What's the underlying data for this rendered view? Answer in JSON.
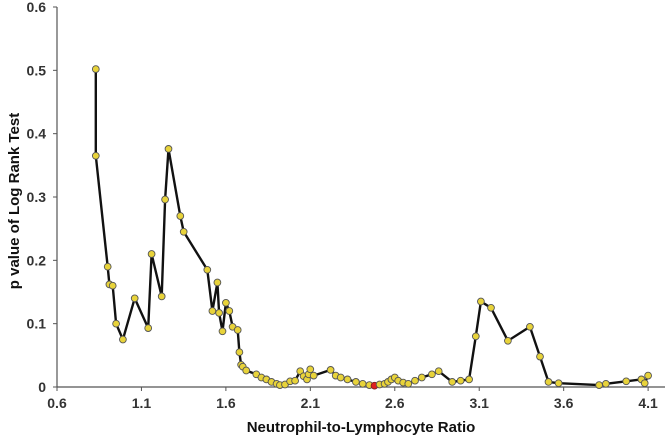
{
  "chart_data": {
    "type": "line",
    "title": "",
    "xlabel": "Neutrophil-to-Lymphocyte Ratio",
    "ylabel": "p value of Log Rank Test",
    "xlim": [
      0.6,
      4.2
    ],
    "ylim": [
      0,
      0.6
    ],
    "x_ticks": [
      0.6,
      1.1,
      1.6,
      2.1,
      2.6,
      3.1,
      3.6,
      4.1
    ],
    "x_tick_labels": [
      "0.6",
      "1.1",
      "1.6",
      "2.1",
      "2.6",
      "3.1",
      "3.6",
      "4.1"
    ],
    "y_ticks": [
      0,
      0.1,
      0.2,
      0.3,
      0.4,
      0.5,
      0.6
    ],
    "y_tick_labels": [
      "0",
      "0.1",
      "0.2",
      "0.3",
      "0.4",
      "0.5",
      "0.6"
    ],
    "grid": false,
    "legend": "none",
    "colors": {
      "line": "#111111",
      "marker_fill": "#e8d33a",
      "marker_stroke": "#555555",
      "highlight_fill": "#e02020",
      "axis": "#555555"
    },
    "series": [
      {
        "x": [
          0.83,
          0.83,
          0.9,
          0.91,
          0.93,
          0.95,
          0.99,
          1.06,
          1.14,
          1.16,
          1.22,
          1.24,
          1.26,
          1.33,
          1.35,
          1.49,
          1.52,
          1.55,
          1.56,
          1.58,
          1.6,
          1.62,
          1.64,
          1.67,
          1.68,
          1.69,
          1.7,
          1.72,
          1.78,
          1.81,
          1.84,
          1.87,
          1.9,
          1.92,
          1.95,
          1.98,
          2.01,
          2.04,
          2.06,
          2.08,
          2.09,
          2.1,
          2.12,
          2.22,
          2.25,
          2.28,
          2.32,
          2.37,
          2.41,
          2.45,
          2.48,
          2.51,
          2.54,
          2.56,
          2.58,
          2.6,
          2.62,
          2.65,
          2.68,
          2.72,
          2.76,
          2.82,
          2.86,
          2.94,
          2.99,
          3.04,
          3.08,
          3.11,
          3.17,
          3.27,
          3.4,
          3.46,
          3.51,
          3.57,
          3.81,
          3.85,
          3.97,
          4.06,
          4.08,
          4.1
        ],
        "y": [
          0.502,
          0.365,
          0.19,
          0.162,
          0.16,
          0.1,
          0.075,
          0.14,
          0.093,
          0.21,
          0.143,
          0.296,
          0.376,
          0.27,
          0.245,
          0.185,
          0.12,
          0.165,
          0.117,
          0.088,
          0.133,
          0.12,
          0.095,
          0.09,
          0.055,
          0.035,
          0.032,
          0.026,
          0.02,
          0.015,
          0.012,
          0.008,
          0.005,
          0.003,
          0.004,
          0.009,
          0.01,
          0.025,
          0.017,
          0.012,
          0.02,
          0.028,
          0.018,
          0.027,
          0.018,
          0.015,
          0.012,
          0.008,
          0.005,
          0.003,
          0.002,
          0.004,
          0.005,
          0.008,
          0.012,
          0.015,
          0.01,
          0.007,
          0.005,
          0.01,
          0.015,
          0.02,
          0.025,
          0.008,
          0.01,
          0.012,
          0.08,
          0.135,
          0.125,
          0.073,
          0.095,
          0.048,
          0.008,
          0.006,
          0.003,
          0.005,
          0.009,
          0.012,
          0.006,
          0.018
        ],
        "highlight_index": 50,
        "highlight_alt_fill_index": 13
      }
    ]
  }
}
